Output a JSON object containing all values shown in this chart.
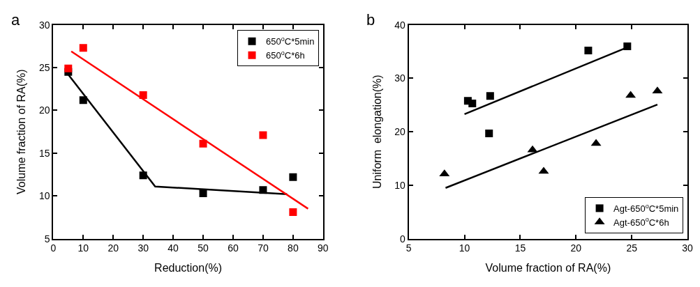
{
  "chart_data": [
    {
      "type": "scatter",
      "title": "a",
      "xlabel": "Reduction(%)",
      "ylabel": "Volume fraction of RA(%)",
      "xlim": [
        0,
        90
      ],
      "xticks": [
        0,
        10,
        20,
        30,
        40,
        50,
        60,
        70,
        80,
        90
      ],
      "ylim": [
        5,
        30
      ],
      "yticks": [
        5,
        10,
        15,
        20,
        25,
        30
      ],
      "legend": "top right",
      "series": [
        {
          "name": "650$^{o}$C*5min",
          "color": "#000000",
          "marker": "square",
          "x": [
            5,
            10,
            30,
            50,
            70,
            80
          ],
          "values": [
            24.5,
            21.2,
            12.4,
            10.3,
            10.7,
            12.2
          ]
        },
        {
          "name": "650$^{o}$C*6h",
          "color": "#ff0000",
          "marker": "square",
          "x": [
            5,
            10,
            30,
            50,
            70,
            80
          ],
          "values": [
            24.9,
            27.3,
            21.8,
            16.1,
            17.1,
            8.1
          ]
        },
        {
          "type": "line",
          "color": "#000000",
          "marker": "none",
          "x": [
            5,
            34,
            78
          ],
          "values": [
            24.2,
            11.1,
            10.2
          ]
        },
        {
          "type": "line",
          "color": "#ff0000",
          "marker": "none",
          "x": [
            6,
            85
          ],
          "values": [
            26.9,
            8.5
          ]
        }
      ]
    },
    {
      "type": "scatter",
      "title": "b",
      "xlabel": "Volume fraction of RA(%)",
      "ylabel": "Uniform  elongation(%)",
      "xlim": [
        5,
        30
      ],
      "xticks": [
        5,
        10,
        15,
        20,
        25,
        30
      ],
      "ylim": [
        0,
        40
      ],
      "yticks": [
        0,
        10,
        20,
        30,
        40
      ],
      "legend": "bottom right",
      "series": [
        {
          "name": "Agt-650$^{o}$C*5min",
          "color": "#000000",
          "marker": "square",
          "x": [
            10.3,
            10.7,
            12.3,
            12.2,
            21.1,
            24.6
          ],
          "values": [
            25.8,
            25.3,
            26.7,
            19.7,
            35.2,
            36.0
          ]
        },
        {
          "name": "Agt-650$^{o}$C*6h",
          "color": "#000000",
          "marker": "triangle",
          "x": [
            8.2,
            16.1,
            17.1,
            21.8,
            24.9,
            27.3
          ],
          "values": [
            12.1,
            16.6,
            12.6,
            17.8,
            26.8,
            27.6
          ]
        },
        {
          "type": "line",
          "color": "#000000",
          "marker": "none",
          "x": [
            10,
            24.5
          ],
          "values": [
            23.3,
            35.7
          ]
        },
        {
          "type": "line",
          "color": "#000000",
          "marker": "none",
          "x": [
            8.3,
            27.3
          ],
          "values": [
            9.5,
            25.1
          ]
        }
      ]
    }
  ]
}
